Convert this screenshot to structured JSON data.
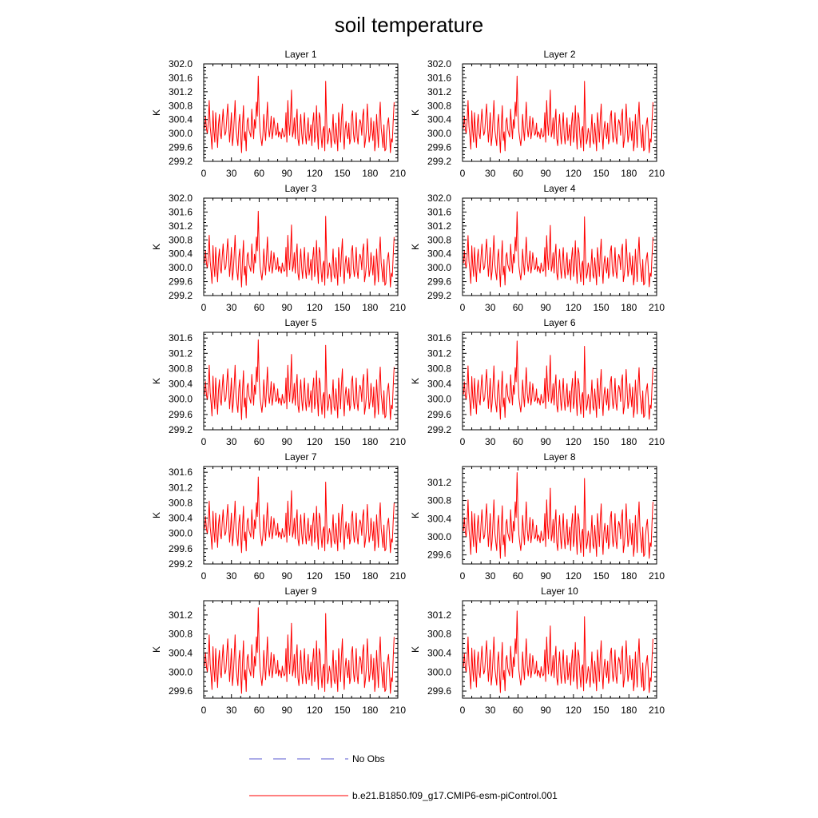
{
  "page": {
    "title": "soil temperature"
  },
  "legend": {
    "obs_label": "No Obs",
    "obs_color": "#5a5ad2",
    "model_label": "b.e21.B1850.f09_g17.CMIP6-esm-piControl.001",
    "model_color": "#ff0000"
  },
  "chart_data": {
    "type": "line",
    "title": "soil temperature",
    "ylabel": "K",
    "xlim": [
      0,
      210
    ],
    "xticks": [
      0,
      30,
      60,
      90,
      120,
      150,
      180,
      210
    ],
    "x_start": 1,
    "x_step": 1,
    "base_series": [
      300.15,
      300.5,
      300.12,
      300.0,
      300.35,
      300.95,
      300.2,
      299.9,
      299.55,
      300.65,
      300.1,
      299.75,
      300.6,
      300.05,
      299.6,
      300.25,
      300.55,
      300.0,
      299.85,
      300.3,
      300.7,
      300.2,
      299.95,
      300.05,
      300.45,
      300.85,
      300.3,
      299.75,
      300.15,
      300.6,
      299.65,
      299.9,
      300.4,
      300.95,
      300.1,
      299.85,
      299.65,
      300.3,
      300.55,
      299.95,
      299.45,
      300.25,
      300.8,
      299.8,
      300.05,
      299.5,
      300.35,
      300.45,
      300.1,
      300.0,
      299.9,
      300.7,
      300.25,
      299.85,
      300.4,
      300.15,
      300.9,
      300.5,
      301.65,
      300.6,
      300.05,
      299.85,
      299.65,
      299.95,
      300.55,
      300.1,
      299.8,
      300.35,
      300.9,
      300.2,
      299.9,
      300.15,
      300.5,
      299.85,
      300.05,
      300.45,
      300.2,
      299.95,
      300.0,
      300.3,
      299.9,
      300.05,
      300.0,
      299.85,
      300.15,
      300.0,
      299.9,
      299.95,
      300.6,
      299.75,
      300.95,
      300.3,
      299.95,
      300.5,
      301.25,
      299.9,
      300.05,
      300.45,
      299.85,
      300.35,
      300.7,
      299.85,
      299.65,
      300.15,
      300.55,
      300.0,
      299.7,
      300.2,
      300.6,
      299.95,
      299.7,
      300.1,
      300.45,
      299.8,
      300.0,
      300.25,
      299.65,
      300.3,
      300.6,
      299.75,
      299.95,
      300.8,
      300.05,
      299.55,
      300.6,
      300.45,
      299.9,
      299.6,
      300.1,
      300.2,
      299.5,
      301.5,
      300.35,
      299.7,
      299.85,
      300.15,
      300.0,
      299.6,
      300.05,
      300.55,
      299.8,
      299.7,
      300.3,
      299.95,
      299.5,
      300.6,
      300.25,
      299.75,
      300.4,
      300.85,
      300.0,
      299.55,
      300.1,
      300.35,
      300.0,
      299.85,
      300.3,
      299.7,
      299.85,
      300.5,
      300.65,
      300.0,
      299.75,
      300.05,
      300.6,
      299.9,
      299.7,
      300.2,
      300.4,
      300.3,
      299.95,
      300.5,
      300.7,
      299.6,
      299.8,
      300.1,
      300.85,
      300.3,
      299.75,
      299.95,
      300.45,
      300.1,
      299.8,
      300.35,
      299.5,
      299.75,
      300.55,
      300.1,
      299.6,
      300.45,
      300.9,
      300.15,
      299.9,
      299.6,
      300.25,
      299.5,
      299.55,
      300.05,
      300.3,
      300.45,
      300.0,
      299.45,
      299.85,
      299.75,
      300.35,
      300.9
    ],
    "panels": [
      {
        "title": "Layer 1",
        "ylim": [
          299.2,
          302.0
        ],
        "yticks": [
          "299.2",
          "299.6",
          "300.0",
          "300.4",
          "300.8",
          "301.2",
          "301.6",
          "302.0"
        ],
        "mean": 300.12,
        "scale": 1.0,
        "values_note": "series = mean + (base_series - 300.12) * scale"
      },
      {
        "title": "Layer 2",
        "ylim": [
          299.2,
          302.0
        ],
        "yticks": [
          "299.2",
          "299.6",
          "300.0",
          "300.4",
          "300.8",
          "301.2",
          "301.6",
          "302.0"
        ],
        "mean": 300.12,
        "scale": 1.0,
        "values_note": "series = mean + (base_series - 300.12) * scale"
      },
      {
        "title": "Layer 3",
        "ylim": [
          299.2,
          302.0
        ],
        "yticks": [
          "299.2",
          "299.6",
          "300.0",
          "300.4",
          "300.8",
          "301.2",
          "301.6",
          "302.0"
        ],
        "mean": 300.11,
        "scale": 0.99,
        "values_note": "series = mean + (base_series - 300.12) * scale"
      },
      {
        "title": "Layer 4",
        "ylim": [
          299.2,
          302.0
        ],
        "yticks": [
          "299.2",
          "299.6",
          "300.0",
          "300.4",
          "300.8",
          "301.2",
          "301.6",
          "302.0"
        ],
        "mean": 300.11,
        "scale": 0.98,
        "values_note": "series = mean + (base_series - 300.12) * scale"
      },
      {
        "title": "Layer 5",
        "ylim": [
          299.2,
          301.75
        ],
        "yticks": [
          "299.2",
          "299.6",
          "300.0",
          "300.4",
          "300.8",
          "301.2",
          "301.6"
        ],
        "mean": 300.1,
        "scale": 0.95,
        "values_note": "series = mean + (base_series - 300.12) * scale"
      },
      {
        "title": "Layer 6",
        "ylim": [
          299.2,
          301.75
        ],
        "yticks": [
          "299.2",
          "299.6",
          "300.0",
          "300.4",
          "300.8",
          "301.2",
          "301.6"
        ],
        "mean": 300.1,
        "scale": 0.93,
        "values_note": "series = mean + (base_series - 300.12) * scale"
      },
      {
        "title": "Layer 7",
        "ylim": [
          299.2,
          301.75
        ],
        "yticks": [
          "299.2",
          "299.6",
          "300.0",
          "300.4",
          "300.8",
          "301.2",
          "301.6"
        ],
        "mean": 300.1,
        "scale": 0.9,
        "values_note": "series = mean + (base_series - 300.12) * scale"
      },
      {
        "title": "Layer 8",
        "ylim": [
          299.4,
          301.55
        ],
        "yticks": [
          "299.6",
          "300.0",
          "300.4",
          "300.8",
          "301.2"
        ],
        "mean": 300.1,
        "scale": 0.86,
        "values_note": "series = mean + (base_series - 300.12) * scale"
      },
      {
        "title": "Layer 9",
        "ylim": [
          299.45,
          301.5
        ],
        "yticks": [
          "299.6",
          "300.0",
          "300.4",
          "300.8",
          "301.2"
        ],
        "mean": 300.1,
        "scale": 0.82,
        "values_note": "series = mean + (base_series - 300.12) * scale"
      },
      {
        "title": "Layer 10",
        "ylim": [
          299.45,
          301.5
        ],
        "yticks": [
          "299.6",
          "300.0",
          "300.4",
          "300.8",
          "301.2"
        ],
        "mean": 300.09,
        "scale": 0.78,
        "values_note": "series = mean + (base_series - 300.12) * scale"
      }
    ]
  }
}
